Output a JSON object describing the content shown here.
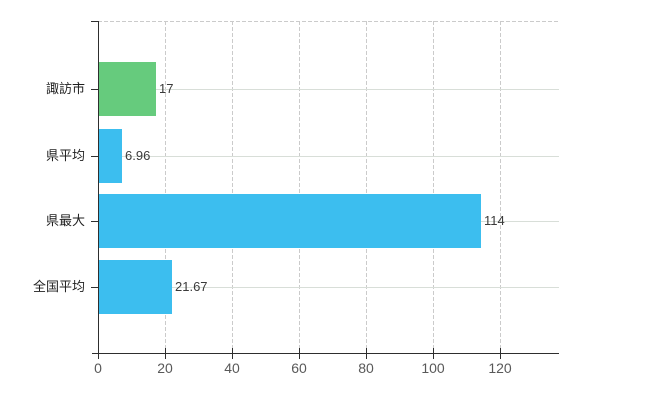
{
  "chart_data": {
    "type": "bar",
    "orientation": "horizontal",
    "title": "",
    "xlabel": "",
    "ylabel": "",
    "categories": [
      "諏訪市",
      "県平均",
      "県最大",
      "全国平均"
    ],
    "values": [
      17,
      6.96,
      114,
      21.67
    ],
    "value_labels": [
      "17",
      "6.96",
      "114",
      "21.67"
    ],
    "bar_colors": [
      "#66CB7D",
      "#3CBEEF",
      "#3CBEEF",
      "#3CBEEF"
    ],
    "x_ticks": [
      0,
      20,
      40,
      60,
      80,
      100,
      120
    ],
    "x_tick_labels": [
      "0",
      "20",
      "40",
      "60",
      "80",
      "100",
      "120"
    ],
    "xlim": [
      0,
      137.5
    ],
    "grid": true,
    "grid_style": {
      "vertical": "dashed",
      "horizontal_top": "dashed",
      "horizontal_category": "solid"
    },
    "legend": false
  },
  "colors": {
    "background": "#ffffff",
    "axis": "#2e2e2e",
    "grid_dashed": "#cbcbcb",
    "grid_solid": "#d8ded8",
    "category_label": "#1f1f1f",
    "value_label": "#3a3a3a",
    "tick_label": "#595959"
  }
}
